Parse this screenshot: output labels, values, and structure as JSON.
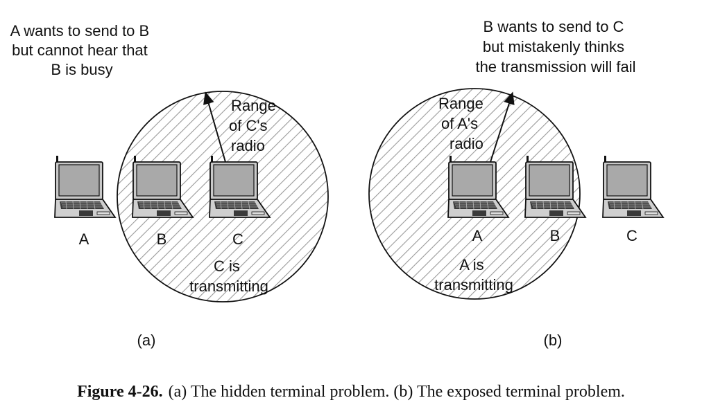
{
  "panel_a": {
    "annotation": [
      "A wants to send to B",
      "but cannot hear that",
      "B is busy"
    ],
    "range_label": [
      "Range",
      "of C's",
      "radio"
    ],
    "status_label": [
      "C is",
      "transmitting"
    ],
    "nodes": [
      "A",
      "B",
      "C"
    ],
    "panel_label": "(a)"
  },
  "panel_b": {
    "annotation": [
      "B wants to send to C",
      "but mistakenly thinks",
      "the transmission will fail"
    ],
    "range_label": [
      "Range",
      "of A's",
      "radio"
    ],
    "status_label": [
      "A is",
      "transmitting"
    ],
    "nodes": [
      "A",
      "B",
      "C"
    ],
    "panel_label": "(b)"
  },
  "caption": {
    "figure_number": "Figure 4-26.",
    "text": "(a) The hidden terminal problem. (b) The exposed terminal problem."
  },
  "icons": {
    "node": "laptop-icon"
  }
}
